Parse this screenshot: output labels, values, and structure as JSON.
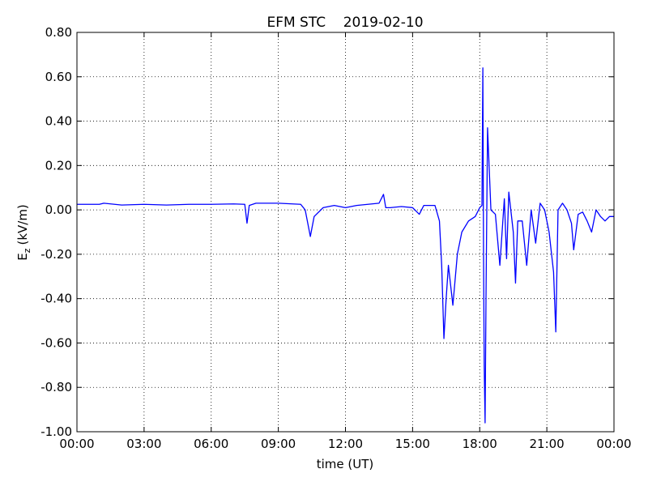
{
  "chart_data": {
    "type": "line",
    "title": "EFM STC    2019-02-10",
    "xlabel": "time (UT)",
    "ylabel": "E",
    "ylabel_subscript": "z",
    "ylabel_unit": "(kV/m)",
    "color": "#0000ff",
    "grid": true,
    "xlim": [
      0,
      24
    ],
    "ylim": [
      -1.0,
      0.8
    ],
    "xticks": [
      {
        "value": 0,
        "label": "00:00"
      },
      {
        "value": 3,
        "label": "03:00"
      },
      {
        "value": 6,
        "label": "06:00"
      },
      {
        "value": 9,
        "label": "09:00"
      },
      {
        "value": 12,
        "label": "12:00"
      },
      {
        "value": 15,
        "label": "15:00"
      },
      {
        "value": 18,
        "label": "18:00"
      },
      {
        "value": 21,
        "label": "21:00"
      },
      {
        "value": 24,
        "label": "00:00"
      }
    ],
    "yticks": [
      {
        "value": -1.0,
        "label": "-1.00"
      },
      {
        "value": -0.8,
        "label": "-0.80"
      },
      {
        "value": -0.6,
        "label": "-0.60"
      },
      {
        "value": -0.4,
        "label": "-0.40"
      },
      {
        "value": -0.2,
        "label": "-0.20"
      },
      {
        "value": 0,
        "label": "0.00"
      },
      {
        "value": 0.2,
        "label": "0.20"
      },
      {
        "value": 0.4,
        "label": "0.40"
      },
      {
        "value": 0.6,
        "label": "0.60"
      },
      {
        "value": 0.8,
        "label": "0.80"
      }
    ],
    "x": [
      0,
      1,
      1.2,
      2,
      3,
      4,
      5,
      6,
      7,
      7.5,
      7.6,
      7.7,
      8,
      9,
      10,
      10.2,
      10.43,
      10.6,
      11,
      11.5,
      12,
      12.5,
      13,
      13.5,
      13.7,
      13.8,
      14,
      14.5,
      15,
      15.3,
      15.5,
      16,
      16.2,
      16.3,
      16.4,
      16.5,
      16.6,
      16.8,
      17,
      17.2,
      17.5,
      17.8,
      18,
      18.1,
      18.14,
      18.17,
      18.2,
      18.24,
      18.28,
      18.35,
      18.5,
      18.7,
      18.9,
      19.1,
      19.2,
      19.3,
      19.5,
      19.6,
      19.7,
      19.9,
      20.1,
      20.3,
      20.5,
      20.7,
      20.9,
      21.1,
      21.3,
      21.4,
      21.5,
      21.7,
      21.9,
      22.1,
      22.2,
      22.4,
      22.6,
      22.8,
      23,
      23.2,
      23.4,
      23.6,
      23.8,
      24
    ],
    "values": [
      0.025,
      0.025,
      0.03,
      0.022,
      0.025,
      0.022,
      0.025,
      0.025,
      0.027,
      0.025,
      -0.06,
      0.02,
      0.03,
      0.03,
      0.025,
      0.0,
      -0.12,
      -0.03,
      0.01,
      0.02,
      0.01,
      0.02,
      0.025,
      0.03,
      0.07,
      0.01,
      0.01,
      0.015,
      0.01,
      -0.02,
      0.02,
      0.02,
      -0.05,
      -0.25,
      -0.58,
      -0.4,
      -0.25,
      -0.43,
      -0.2,
      -0.1,
      -0.05,
      -0.03,
      0.01,
      0.02,
      0.64,
      -0.2,
      -0.7,
      -0.96,
      -0.4,
      0.37,
      0.0,
      -0.02,
      -0.25,
      0.05,
      -0.22,
      0.08,
      -0.1,
      -0.33,
      -0.05,
      -0.05,
      -0.25,
      0.0,
      -0.15,
      0.03,
      0.0,
      -0.1,
      -0.28,
      -0.55,
      0.0,
      0.03,
      0.0,
      -0.06,
      -0.18,
      -0.02,
      -0.01,
      -0.05,
      -0.1,
      0.0,
      -0.03,
      -0.05,
      -0.03,
      -0.03
    ]
  }
}
